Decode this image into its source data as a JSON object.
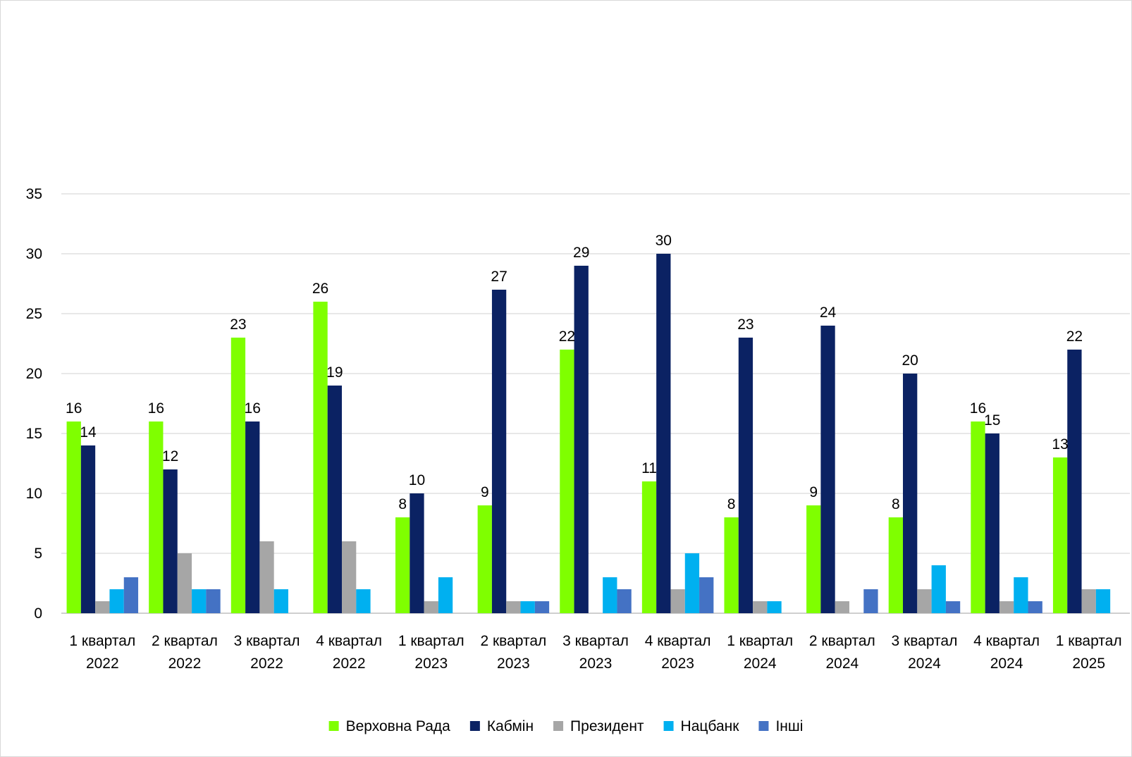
{
  "chart_data": {
    "type": "bar",
    "title": "",
    "xlabel": "",
    "ylabel": "",
    "ylim": [
      0,
      35
    ],
    "yticks": [
      0,
      5,
      10,
      15,
      20,
      25,
      30,
      35
    ],
    "grid": true,
    "legend_position": "bottom",
    "categories": [
      [
        "1 квартал",
        "2022"
      ],
      [
        "2 квартал",
        "2022"
      ],
      [
        "3 квартал",
        "2022"
      ],
      [
        "4 квартал",
        "2022"
      ],
      [
        "1 квартал",
        "2023"
      ],
      [
        "2 квартал",
        "2023"
      ],
      [
        "3 квартал",
        "2023"
      ],
      [
        "4 квартал",
        "2023"
      ],
      [
        "1 квартал",
        "2024"
      ],
      [
        "2 квартал",
        "2024"
      ],
      [
        "3 квартал",
        "2024"
      ],
      [
        "4 квартал",
        "2024"
      ],
      [
        "1 квартал",
        "2025"
      ]
    ],
    "series": [
      {
        "name": "Верховна Рада",
        "color": "#7FFF00",
        "labeled": true,
        "values": [
          16,
          16,
          23,
          26,
          8,
          9,
          22,
          11,
          8,
          9,
          8,
          16,
          13
        ]
      },
      {
        "name": "Кабмін",
        "color": "#0B2263",
        "labeled": true,
        "values": [
          14,
          12,
          16,
          19,
          10,
          27,
          29,
          30,
          23,
          24,
          20,
          15,
          22
        ]
      },
      {
        "name": "Президент",
        "color": "#A6A6A6",
        "labeled": false,
        "values": [
          1,
          5,
          6,
          6,
          1,
          1,
          0,
          2,
          1,
          1,
          2,
          1,
          2
        ]
      },
      {
        "name": "Нацбанк",
        "color": "#00B0F0",
        "labeled": false,
        "values": [
          2,
          2,
          2,
          2,
          3,
          1,
          3,
          5,
          1,
          0,
          4,
          3,
          2
        ]
      },
      {
        "name": "Інші",
        "color": "#4472C4",
        "labeled": false,
        "values": [
          3,
          2,
          0,
          0,
          0,
          1,
          2,
          3,
          0,
          2,
          1,
          1,
          0
        ]
      }
    ]
  }
}
